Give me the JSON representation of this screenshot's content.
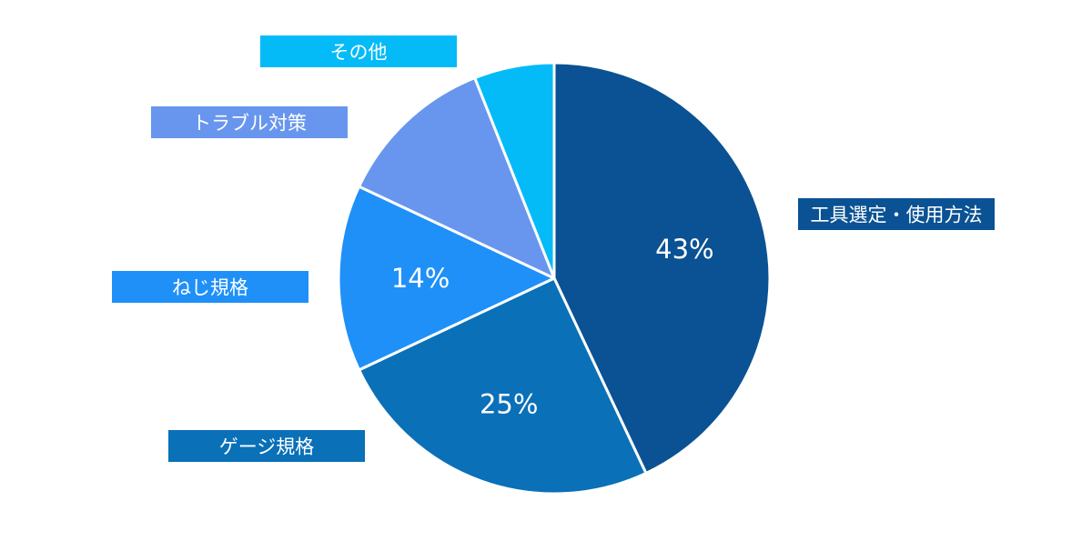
{
  "chart_data": {
    "type": "pie",
    "slices": [
      {
        "label": "工具選定・使用方法",
        "value": 43,
        "value_label": "43%",
        "color": "#0a5293"
      },
      {
        "label": "ゲージ規格",
        "value": 25,
        "value_label": "25%",
        "color": "#0a70b8"
      },
      {
        "label": "ねじ規格",
        "value": 14,
        "value_label": "14%",
        "color": "#1f90f8"
      },
      {
        "label": "トラブル対策",
        "value": 12,
        "value_label": "",
        "color": "#6896ee"
      },
      {
        "label": "その他",
        "value": 6,
        "value_label": "",
        "color": "#04bbf8"
      }
    ],
    "start_angle_deg": 0,
    "direction": "clockwise",
    "legend": "category labels placed outside the pie on colored boxes"
  }
}
